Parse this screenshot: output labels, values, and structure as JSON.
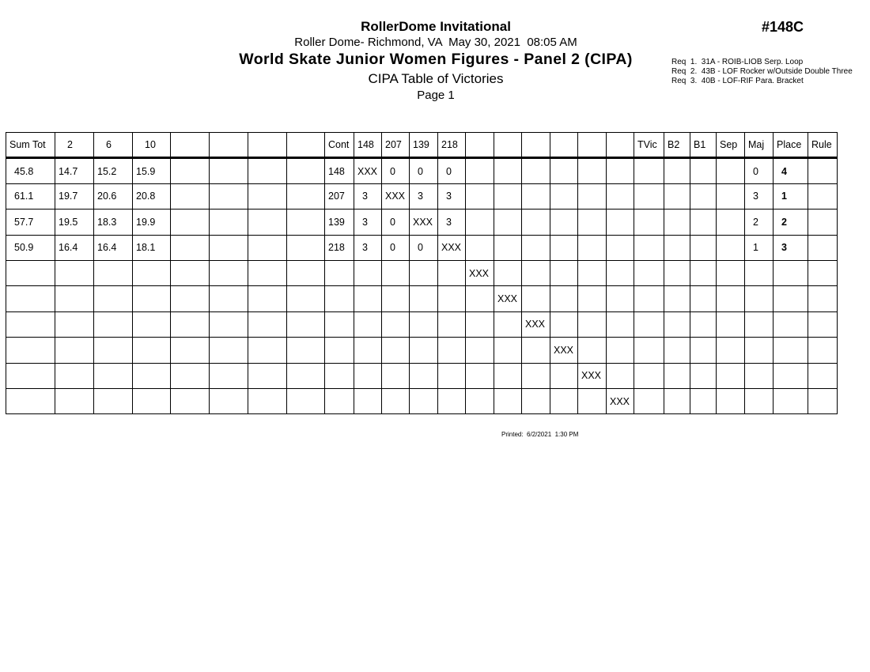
{
  "header": {
    "event_title": "RollerDome Invitational",
    "venue_datetime": "Roller Dome- Richmond, VA  May 30, 2021  08:05 AM",
    "competition_title": "World Skate Junior Women Figures - Panel 2 (CIPA)",
    "report_title": "CIPA Table of Victories",
    "page": "Page 1",
    "event_code": "#148C",
    "requirements": [
      "Req  1.  31A - ROIB-LIOB Serp. Loop",
      "Req  2.  43B - LOF Rocker w/Outside Double Three",
      "Req  3.  40B - LOF-RIF Para. Bracket"
    ]
  },
  "table": {
    "columns": [
      "Sum Tot",
      "2",
      "6",
      "10",
      "",
      "",
      "",
      "",
      "Cont",
      "148",
      "207",
      "139",
      "218",
      "",
      "",
      "",
      "",
      "",
      "",
      "TVic",
      "B2",
      "B1",
      "Sep",
      "Maj",
      "Place",
      "Rule"
    ],
    "rows": [
      [
        "45.8",
        "14.7",
        "15.2",
        "15.9",
        "",
        "",
        "",
        "",
        "148",
        "XXX",
        "0",
        "0",
        "0",
        "",
        "",
        "",
        "",
        "",
        "",
        "",
        "",
        "",
        "",
        "0",
        "4",
        ""
      ],
      [
        "61.1",
        "19.7",
        "20.6",
        "20.8",
        "",
        "",
        "",
        "",
        "207",
        "3",
        "XXX",
        "3",
        "3",
        "",
        "",
        "",
        "",
        "",
        "",
        "",
        "",
        "",
        "",
        "3",
        "1",
        ""
      ],
      [
        "57.7",
        "19.5",
        "18.3",
        "19.9",
        "",
        "",
        "",
        "",
        "139",
        "3",
        "0",
        "XXX",
        "3",
        "",
        "",
        "",
        "",
        "",
        "",
        "",
        "",
        "",
        "",
        "2",
        "2",
        ""
      ],
      [
        "50.9",
        "16.4",
        "16.4",
        "18.1",
        "",
        "",
        "",
        "",
        "218",
        "3",
        "0",
        "0",
        "XXX",
        "",
        "",
        "",
        "",
        "",
        "",
        "",
        "",
        "",
        "",
        "1",
        "3",
        ""
      ],
      [
        "",
        "",
        "",
        "",
        "",
        "",
        "",
        "",
        "",
        "",
        "",
        "",
        "",
        "XXX",
        "",
        "",
        "",
        "",
        "",
        "",
        "",
        "",
        "",
        "",
        "",
        ""
      ],
      [
        "",
        "",
        "",
        "",
        "",
        "",
        "",
        "",
        "",
        "",
        "",
        "",
        "",
        "",
        "XXX",
        "",
        "",
        "",
        "",
        "",
        "",
        "",
        "",
        "",
        "",
        ""
      ],
      [
        "",
        "",
        "",
        "",
        "",
        "",
        "",
        "",
        "",
        "",
        "",
        "",
        "",
        "",
        "",
        "XXX",
        "",
        "",
        "",
        "",
        "",
        "",
        "",
        "",
        "",
        ""
      ],
      [
        "",
        "",
        "",
        "",
        "",
        "",
        "",
        "",
        "",
        "",
        "",
        "",
        "",
        "",
        "",
        "",
        "XXX",
        "",
        "",
        "",
        "",
        "",
        "",
        "",
        "",
        ""
      ],
      [
        "",
        "",
        "",
        "",
        "",
        "",
        "",
        "",
        "",
        "",
        "",
        "",
        "",
        "",
        "",
        "",
        "",
        "XXX",
        "",
        "",
        "",
        "",
        "",
        "",
        "",
        ""
      ],
      [
        "",
        "",
        "",
        "",
        "",
        "",
        "",
        "",
        "",
        "",
        "",
        "",
        "",
        "",
        "",
        "",
        "",
        "",
        "XXX",
        "",
        "",
        "",
        "",
        "",
        "",
        ""
      ]
    ]
  },
  "footer": {
    "printed": "Printed:  6/2/2021  1:30 PM"
  }
}
